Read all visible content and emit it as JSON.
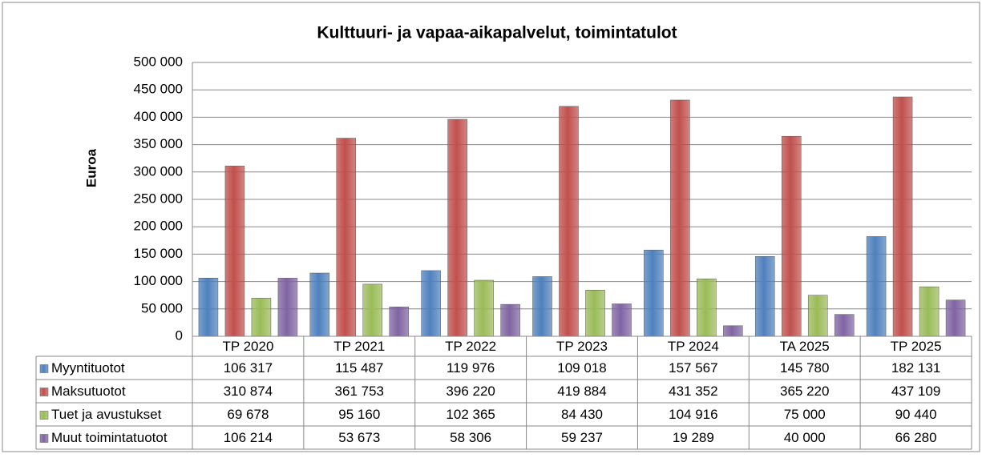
{
  "chart_data": {
    "type": "bar",
    "title": "Kulttuuri- ja vapaa-aikapalvelut, toimintatulot",
    "ylabel": "Euroa",
    "categories": [
      "TP 2020",
      "TP 2021",
      "TP 2022",
      "TP 2023",
      "TP 2024",
      "TA 2025",
      "TP 2025"
    ],
    "series": [
      {
        "name": "Myyntituotot",
        "color": "#4f81bd",
        "values": [
          106317,
          115487,
          119976,
          109018,
          157567,
          145780,
          182131
        ],
        "value_labels": [
          "106 317",
          "115 487",
          "119 976",
          "109 018",
          "157 567",
          "145 780",
          "182 131"
        ]
      },
      {
        "name": "Maksutuotot",
        "color": "#c0504d",
        "values": [
          310874,
          361753,
          396220,
          419884,
          431352,
          365220,
          437109
        ],
        "value_labels": [
          "310 874",
          "361 753",
          "396 220",
          "419 884",
          "431 352",
          "365 220",
          "437 109"
        ]
      },
      {
        "name": "Tuet ja avustukset",
        "color": "#9bbb59",
        "values": [
          69678,
          95160,
          102365,
          84430,
          104916,
          75000,
          90440
        ],
        "value_labels": [
          "69 678",
          "95 160",
          "102 365",
          "84 430",
          "104 916",
          "75 000",
          "90 440"
        ]
      },
      {
        "name": "Muut toimintatuotot",
        "color": "#8064a2",
        "values": [
          106214,
          53673,
          58306,
          59237,
          19289,
          40000,
          66280
        ],
        "value_labels": [
          "106 214",
          "53 673",
          "58 306",
          "59 237",
          "19 289",
          "40 000",
          "66 280"
        ]
      }
    ],
    "ylim": [
      0,
      500000
    ],
    "yticks": [
      0,
      {
        "value": 50000,
        "label": "50 000"
      },
      {
        "value": 100000,
        "label": "100 000"
      },
      {
        "value": 150000,
        "label": "150 000"
      },
      {
        "value": 200000,
        "label": "200 000"
      },
      {
        "value": 250000,
        "label": "250 000"
      },
      {
        "value": 300000,
        "label": "300 000"
      },
      {
        "value": 350000,
        "label": "350 000"
      },
      {
        "value": 400000,
        "label": "400 000"
      },
      {
        "value": 450000,
        "label": "450 000"
      },
      {
        "value": 500000,
        "label": "500 000"
      }
    ],
    "grid": true
  }
}
